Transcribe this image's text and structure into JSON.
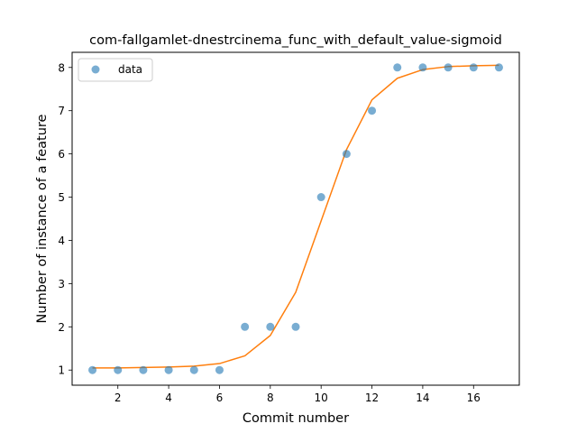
{
  "chart_data": {
    "type": "scatter",
    "title": "com-fallgamlet-dnestrcinema_func_with_default_value-sigmoid",
    "xlabel": "Commit number",
    "ylabel": "Number of instance of a feature",
    "xlim": [
      0.2,
      17.8
    ],
    "ylim": [
      0.65,
      8.35
    ],
    "xticks": [
      2,
      4,
      6,
      8,
      10,
      12,
      14,
      16
    ],
    "yticks": [
      1,
      2,
      3,
      4,
      5,
      6,
      7,
      8
    ],
    "legend_position": "top-left",
    "series": [
      {
        "name": "data",
        "kind": "scatter",
        "color": "#1f77b4",
        "x": [
          1,
          2,
          3,
          4,
          5,
          6,
          7,
          8,
          9,
          10,
          11,
          12,
          13,
          14,
          15,
          16,
          17
        ],
        "y": [
          1,
          1,
          1,
          1,
          1,
          1,
          2,
          2,
          2,
          5,
          6,
          7,
          8,
          8,
          8,
          8,
          8
        ]
      },
      {
        "kind": "line",
        "color": "#ff7f0e",
        "x": [
          1,
          2,
          3,
          4,
          5,
          6,
          7,
          8,
          9,
          10,
          11,
          12,
          13,
          14,
          15,
          16,
          17
        ],
        "y": [
          1.05,
          1.05,
          1.06,
          1.07,
          1.09,
          1.15,
          1.33,
          1.8,
          2.8,
          4.45,
          6.1,
          7.25,
          7.75,
          7.95,
          8.02,
          8.04,
          8.05
        ]
      }
    ]
  }
}
